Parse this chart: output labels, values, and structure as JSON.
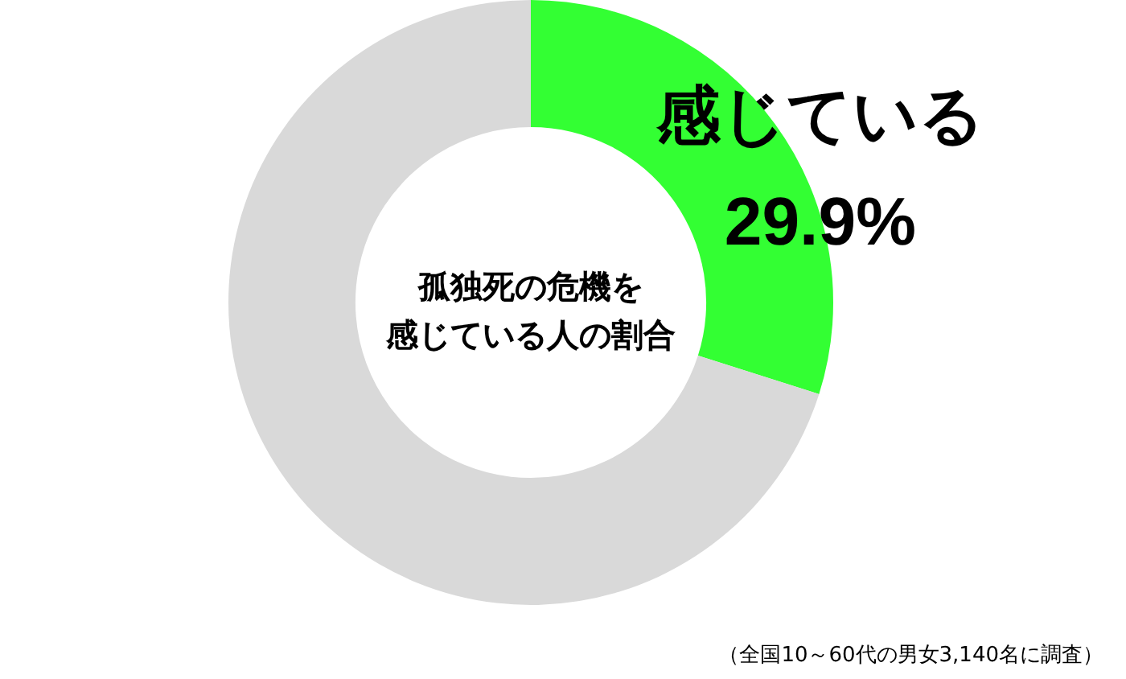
{
  "chart_data": {
    "type": "donut",
    "title": "孤独死の危機を感じている人の割合",
    "categories": [
      "感じている",
      null
    ],
    "values": [
      29.9,
      70.1
    ],
    "colors": [
      "#33ff33",
      "#d9d9d9"
    ],
    "value_labels": [
      "29.9%",
      null
    ],
    "legend": false,
    "annotations": [
      "（全国10～60代の男女3,140名に調査）"
    ]
  }
}
